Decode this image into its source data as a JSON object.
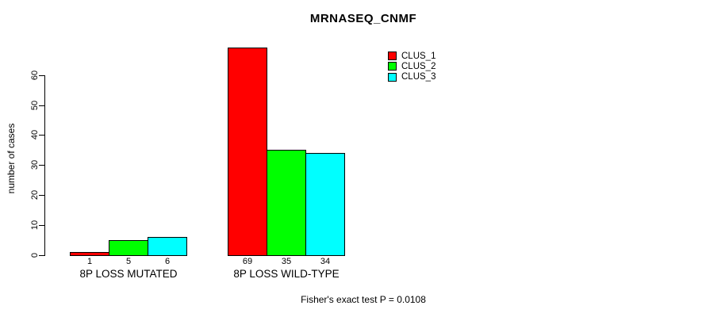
{
  "chart_data": {
    "type": "bar",
    "title": "MRNASEQ_CNMF",
    "xlabel": "",
    "ylabel": "number of cases",
    "ylim": [
      0,
      60
    ],
    "y_ticks": [
      0,
      10,
      20,
      30,
      40,
      50,
      60
    ],
    "grid": false,
    "legend_position": "top-right",
    "series": [
      {
        "name": "CLUS_1",
        "color": "#ff0000"
      },
      {
        "name": "CLUS_2",
        "color": "#00ff00"
      },
      {
        "name": "CLUS_3",
        "color": "#00ffff"
      }
    ],
    "groups": [
      {
        "label": "8P LOSS MUTATED",
        "values": [
          1,
          5,
          6
        ]
      },
      {
        "label": "8P LOSS WILD-TYPE",
        "values": [
          69,
          35,
          34
        ]
      }
    ],
    "bar_value_labels": [
      [
        "1",
        "5",
        "6"
      ],
      [
        "69",
        "35",
        "34"
      ]
    ]
  },
  "annotation": {
    "fisher_text": "Fisher's exact test P = 0.0108"
  }
}
